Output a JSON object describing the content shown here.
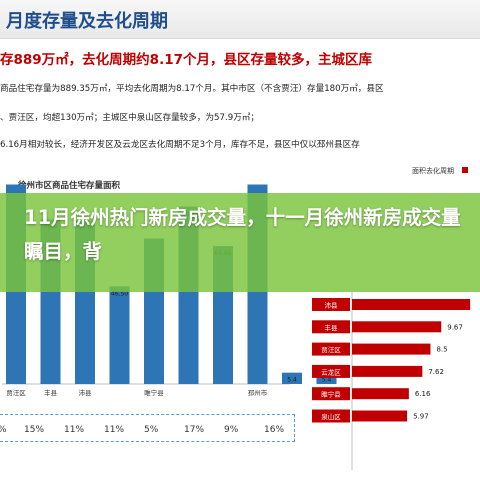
{
  "slide": {
    "title": "月度存量及去化周期",
    "headline": "存889万㎡，去化周期约8.17个月，县区存量较多，主城区库",
    "paragraphs": [
      "商品住宅存量为889.35万㎡，平均去化周期为8.17个月。其中市区（不含贾汪）存量180万㎡，县区",
      "、贾汪区，均超130万㎡；主城区中泉山区存量较多，为57.9万㎡；",
      "6.16月相对较长，经济开发区及云龙区去化周期不足3个月，库存不足，县区中仅以邳州县区存"
    ],
    "left_chart_title": "徐州市区商品住宅存量面积",
    "right_chart_title": "面积去化周期",
    "overlay_text": "11月徐州热门新房成交量，十一月徐州新房成交量瞩目，背"
  },
  "chart_data": [
    {
      "type": "bar",
      "categories": [
        "贾汪区",
        "丰县",
        "沛县",
        "",
        "睢宁县",
        "",
        "",
        "邳州市",
        "",
        ""
      ],
      "values": [
        null,
        78.4,
        77.9,
        46.5,
        69.3,
        84.5,
        65.65,
        null,
        5.4,
        5.4
      ],
      "data_labels": [
        "",
        "78.4",
        "77.9",
        "46.50",
        "",
        "84.5",
        "65.65",
        "",
        "5.4",
        "5.4"
      ],
      "color": "#2e75b6"
    },
    {
      "type": "bar",
      "orientation": "horizontal",
      "categories": [
        "沛县",
        "丰县",
        "贾汪区",
        "云龙区",
        "睢宁县",
        "泉山区"
      ],
      "values": [
        null,
        9.67,
        8.5,
        7.62,
        6.16,
        5.97
      ],
      "data_labels": [
        "",
        "9.67",
        "8.5",
        "7.62",
        "6.16",
        "5.97"
      ],
      "color": "#c00000"
    }
  ],
  "percent_row": [
    "15%",
    "11%",
    "11%",
    "5%",
    "17%",
    "9%",
    "16%"
  ],
  "percent_row_left_partial": "%",
  "colors": {
    "title": "#1f4e8c",
    "headline": "#c00000",
    "overlay": "#7ac43a",
    "bar_left": "#2e75b6",
    "bar_right": "#c00000"
  }
}
